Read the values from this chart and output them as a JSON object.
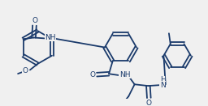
{
  "bg_color": "#f0f0f0",
  "line_color": "#1a3a6b",
  "lw": 1.3,
  "fs": 6.5,
  "figsize": [
    2.56,
    1.31
  ],
  "dpi": 100,
  "xlim": [
    0,
    256
  ],
  "ylim": [
    0,
    131
  ]
}
